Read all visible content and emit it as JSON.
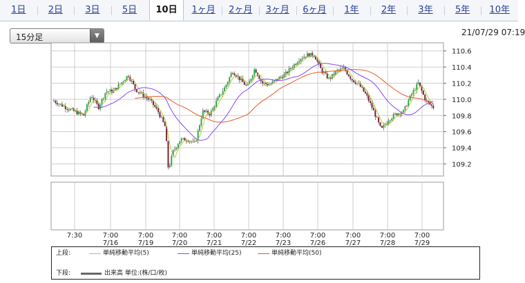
{
  "period_tabs": [
    {
      "label": "1日"
    },
    {
      "label": "2日"
    },
    {
      "label": "3日"
    },
    {
      "label": "5日"
    },
    {
      "label": "10日",
      "active": true
    },
    {
      "label": "1ヶ月"
    },
    {
      "label": "2ヶ月"
    },
    {
      "label": "3ヶ月"
    },
    {
      "label": "6ヶ月"
    },
    {
      "label": "1年"
    },
    {
      "label": "2年"
    },
    {
      "label": "3年"
    },
    {
      "label": "5年"
    },
    {
      "label": "10年"
    }
  ],
  "interval_select": {
    "value": "15分足",
    "arrow_icon": "triangle-down-icon"
  },
  "timestamp": "21/07/29 07:19",
  "legend": {
    "upper_label": "上段:",
    "lower_label": "下段:",
    "ma5": "単純移動平均(5)",
    "ma25": "単純移動平均(25)",
    "ma50": "単純移動平均(50)",
    "volume": "出来高 単位:(株/口/枚)",
    "colors": {
      "ma5": "#b5cc34",
      "ma25": "#8844ee",
      "ma50": "#ee5522",
      "volume": "#666666",
      "candle_up": "#2ea84b",
      "candle_down": "#7a1f3a"
    }
  },
  "chart_data": {
    "type": "candlestick",
    "y_ticks": [
      "110.6",
      "110.4",
      "110.2",
      "110.0",
      "109.8",
      "109.6",
      "109.4",
      "109.2"
    ],
    "ylim": [
      109.05,
      110.7
    ],
    "x_ticks": [
      {
        "time": "7:30",
        "date": ""
      },
      {
        "time": "7:00",
        "date": "7/16"
      },
      {
        "time": "7:00",
        "date": "7/19"
      },
      {
        "time": "7:00",
        "date": "7/20"
      },
      {
        "time": "7:00",
        "date": "7/21"
      },
      {
        "time": "7:00",
        "date": "7/22"
      },
      {
        "time": "7:00",
        "date": "7/23"
      },
      {
        "time": "7:00",
        "date": "7/26"
      },
      {
        "time": "7:00",
        "date": "7/27"
      },
      {
        "time": "7:00",
        "date": "7/28"
      },
      {
        "time": "7:00",
        "date": "7/29"
      }
    ],
    "price_path": [
      [
        0,
        109.98
      ],
      [
        2,
        109.88
      ],
      [
        4,
        109.8
      ],
      [
        5,
        110.05
      ],
      [
        6,
        109.9
      ],
      [
        7,
        110.1
      ],
      [
        8,
        110.1
      ],
      [
        9,
        110.2
      ],
      [
        10,
        110.3
      ],
      [
        11,
        110.12
      ],
      [
        12,
        110.05
      ],
      [
        13,
        109.98
      ],
      [
        14,
        109.85
      ],
      [
        15,
        109.65
      ],
      [
        15.4,
        109.12
      ],
      [
        16,
        109.35
      ],
      [
        17,
        109.5
      ],
      [
        18,
        109.5
      ],
      [
        19,
        109.45
      ],
      [
        20,
        109.85
      ],
      [
        21,
        109.82
      ],
      [
        22,
        110.0
      ],
      [
        23,
        110.15
      ],
      [
        24,
        110.35
      ],
      [
        25,
        110.25
      ],
      [
        26,
        110.15
      ],
      [
        27,
        110.38
      ],
      [
        28,
        110.2
      ],
      [
        29,
        110.18
      ],
      [
        30,
        110.25
      ],
      [
        31,
        110.3
      ],
      [
        32,
        110.4
      ],
      [
        33,
        110.5
      ],
      [
        34,
        110.55
      ],
      [
        35,
        110.55
      ],
      [
        36,
        110.35
      ],
      [
        37,
        110.25
      ],
      [
        38,
        110.35
      ],
      [
        39,
        110.38
      ],
      [
        40,
        110.25
      ],
      [
        41,
        110.18
      ],
      [
        42,
        110.05
      ],
      [
        43,
        109.85
      ],
      [
        44,
        109.62
      ],
      [
        45,
        109.75
      ],
      [
        46,
        109.82
      ],
      [
        47,
        109.85
      ],
      [
        48,
        110.05
      ],
      [
        49,
        110.2
      ],
      [
        50,
        109.98
      ],
      [
        51,
        109.9
      ]
    ],
    "volume_panel": "empty"
  }
}
